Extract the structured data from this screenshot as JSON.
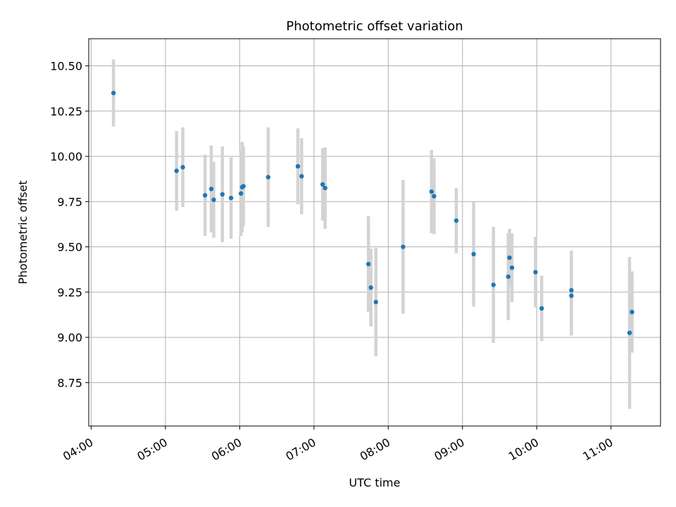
{
  "chart_data": {
    "type": "scatter",
    "title": "Photometric offset variation",
    "xlabel": "UTC time",
    "ylabel": "Photometric offset",
    "x_ticks": [
      "04:00",
      "05:00",
      "06:00",
      "07:00",
      "08:00",
      "09:00",
      "10:00",
      "11:00"
    ],
    "y_ticks": [
      "8.75",
      "9.00",
      "9.25",
      "9.50",
      "9.75",
      "10.00",
      "10.25",
      "10.50"
    ],
    "xlim": [
      "03:58",
      "11:40"
    ],
    "ylim": [
      8.51,
      10.65
    ],
    "grid": true,
    "legend": "none",
    "point_color": "#1f77b4",
    "errorbar_color": "#d3d3d3",
    "points": [
      {
        "time": "04:18",
        "y": 10.35,
        "err": 0.185
      },
      {
        "time": "05:09",
        "y": 9.92,
        "err": 0.22
      },
      {
        "time": "05:14",
        "y": 9.94,
        "err": 0.22
      },
      {
        "time": "05:32",
        "y": 9.785,
        "err": 0.225
      },
      {
        "time": "05:37",
        "y": 9.82,
        "err": 0.24
      },
      {
        "time": "05:39",
        "y": 9.76,
        "err": 0.21
      },
      {
        "time": "05:46",
        "y": 9.79,
        "err": 0.265
      },
      {
        "time": "05:53",
        "y": 9.77,
        "err": 0.225
      },
      {
        "time": "06:01",
        "y": 9.795,
        "err": 0.235
      },
      {
        "time": "06:02",
        "y": 9.83,
        "err": 0.25
      },
      {
        "time": "06:03",
        "y": 9.835,
        "err": 0.22
      },
      {
        "time": "06:23",
        "y": 9.885,
        "err": 0.275
      },
      {
        "time": "06:47",
        "y": 9.945,
        "err": 0.21
      },
      {
        "time": "06:50",
        "y": 9.89,
        "err": 0.21
      },
      {
        "time": "07:07",
        "y": 9.845,
        "err": 0.2
      },
      {
        "time": "07:09",
        "y": 9.825,
        "err": 0.225
      },
      {
        "time": "07:44",
        "y": 9.405,
        "err": 0.265
      },
      {
        "time": "07:46",
        "y": 9.275,
        "err": 0.215
      },
      {
        "time": "07:50",
        "y": 9.195,
        "err": 0.3
      },
      {
        "time": "08:12",
        "y": 9.5,
        "err": 0.37
      },
      {
        "time": "08:35",
        "y": 9.805,
        "err": 0.23
      },
      {
        "time": "08:37",
        "y": 9.78,
        "err": 0.21
      },
      {
        "time": "08:55",
        "y": 9.645,
        "err": 0.18
      },
      {
        "time": "09:09",
        "y": 9.46,
        "err": 0.29
      },
      {
        "time": "09:25",
        "y": 9.29,
        "err": 0.32
      },
      {
        "time": "09:37",
        "y": 9.335,
        "err": 0.24
      },
      {
        "time": "09:38",
        "y": 9.44,
        "err": 0.16
      },
      {
        "time": "09:40",
        "y": 9.385,
        "err": 0.19
      },
      {
        "time": "09:59",
        "y": 9.36,
        "err": 0.195
      },
      {
        "time": "10:04",
        "y": 9.16,
        "err": 0.18
      },
      {
        "time": "10:28",
        "y": 9.26,
        "err": 0.22
      },
      {
        "time": "10:28",
        "y": 9.23,
        "err": 0.22
      },
      {
        "time": "11:15",
        "y": 9.025,
        "err": 0.42
      },
      {
        "time": "11:17",
        "y": 9.14,
        "err": 0.225
      }
    ]
  }
}
